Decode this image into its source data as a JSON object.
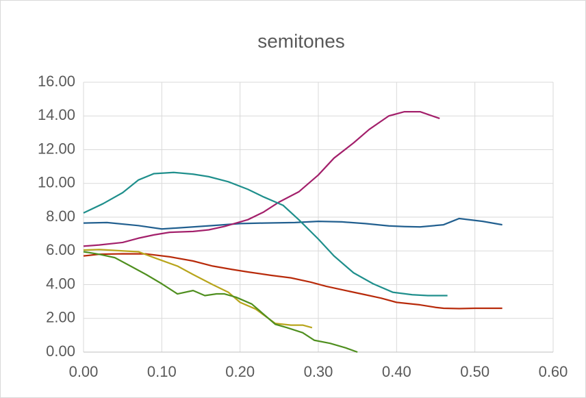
{
  "chart_data": {
    "type": "line",
    "title": "semitones",
    "xlim": [
      0,
      0.6
    ],
    "ylim": [
      0,
      16
    ],
    "grid": true,
    "xticks": [
      {
        "value": 0,
        "label": "0.00"
      },
      {
        "value": 0.1,
        "label": "0.10"
      },
      {
        "value": 0.2,
        "label": "0.20"
      },
      {
        "value": 0.3,
        "label": "0.30"
      },
      {
        "value": 0.4,
        "label": "0.40"
      },
      {
        "value": 0.5,
        "label": "0.50"
      },
      {
        "value": 0.6,
        "label": "0.60"
      }
    ],
    "yticks": [
      {
        "value": 0,
        "label": "0.00"
      },
      {
        "value": 2,
        "label": "2.00"
      },
      {
        "value": 4,
        "label": "4.00"
      },
      {
        "value": 6,
        "label": "6.00"
      },
      {
        "value": 8,
        "label": "8.00"
      },
      {
        "value": 10,
        "label": "10.00"
      },
      {
        "value": 12,
        "label": "12.00"
      },
      {
        "value": 14,
        "label": "14.00"
      },
      {
        "value": 16,
        "label": "16.00"
      }
    ],
    "series": [
      {
        "color": "#215f8f",
        "x": [
          0,
          0.03,
          0.07,
          0.1,
          0.14,
          0.17,
          0.2,
          0.23,
          0.27,
          0.3,
          0.33,
          0.36,
          0.39,
          0.41,
          0.43,
          0.46,
          0.48,
          0.51,
          0.535
        ],
        "values": [
          7.65,
          7.68,
          7.5,
          7.3,
          7.42,
          7.52,
          7.62,
          7.65,
          7.68,
          7.75,
          7.72,
          7.62,
          7.48,
          7.44,
          7.42,
          7.55,
          7.92,
          7.75,
          7.55
        ]
      },
      {
        "color": "#a3206b",
        "x": [
          0,
          0.02,
          0.05,
          0.07,
          0.09,
          0.11,
          0.14,
          0.16,
          0.18,
          0.21,
          0.23,
          0.25,
          0.275,
          0.3,
          0.32,
          0.345,
          0.365,
          0.39,
          0.41,
          0.43,
          0.455
        ],
        "values": [
          6.28,
          6.35,
          6.5,
          6.75,
          6.95,
          7.1,
          7.15,
          7.25,
          7.45,
          7.85,
          8.3,
          8.9,
          9.5,
          10.5,
          11.5,
          12.4,
          13.2,
          14.0,
          14.25,
          14.25,
          13.85
        ]
      },
      {
        "color": "#1f8f8c",
        "x": [
          0,
          0.025,
          0.05,
          0.07,
          0.09,
          0.115,
          0.14,
          0.16,
          0.185,
          0.21,
          0.23,
          0.255,
          0.275,
          0.3,
          0.32,
          0.345,
          0.37,
          0.395,
          0.42,
          0.44,
          0.465
        ],
        "values": [
          8.25,
          8.8,
          9.45,
          10.2,
          10.58,
          10.65,
          10.55,
          10.4,
          10.1,
          9.65,
          9.2,
          8.7,
          7.85,
          6.7,
          5.7,
          4.7,
          4.05,
          3.55,
          3.4,
          3.35,
          3.35
        ]
      },
      {
        "color": "#b82a0a",
        "x": [
          0,
          0.02,
          0.05,
          0.08,
          0.11,
          0.14,
          0.165,
          0.19,
          0.21,
          0.24,
          0.265,
          0.29,
          0.31,
          0.34,
          0.36,
          0.38,
          0.4,
          0.43,
          0.45,
          0.46,
          0.48,
          0.5,
          0.535
        ],
        "values": [
          5.7,
          5.8,
          5.83,
          5.82,
          5.65,
          5.4,
          5.1,
          4.9,
          4.75,
          4.55,
          4.4,
          4.15,
          3.9,
          3.6,
          3.4,
          3.2,
          2.95,
          2.8,
          2.65,
          2.6,
          2.58,
          2.6,
          2.6
        ]
      },
      {
        "color": "#b8a51c",
        "x": [
          0,
          0.02,
          0.05,
          0.07,
          0.09,
          0.12,
          0.14,
          0.165,
          0.185,
          0.2,
          0.22,
          0.245,
          0.265,
          0.28,
          0.292
        ],
        "values": [
          6.05,
          6.08,
          6.0,
          5.95,
          5.6,
          5.1,
          4.6,
          4.0,
          3.55,
          2.95,
          2.55,
          1.7,
          1.6,
          1.6,
          1.45
        ]
      },
      {
        "color": "#4f8f1f",
        "x": [
          0,
          0.02,
          0.04,
          0.06,
          0.08,
          0.1,
          0.12,
          0.14,
          0.155,
          0.17,
          0.18,
          0.195,
          0.215,
          0.245,
          0.26,
          0.28,
          0.295,
          0.315,
          0.335,
          0.35
        ],
        "values": [
          5.95,
          5.8,
          5.6,
          5.1,
          4.6,
          4.05,
          3.45,
          3.65,
          3.35,
          3.45,
          3.45,
          3.25,
          2.85,
          1.65,
          1.45,
          1.15,
          0.7,
          0.52,
          0.25,
          0.0
        ]
      }
    ]
  }
}
